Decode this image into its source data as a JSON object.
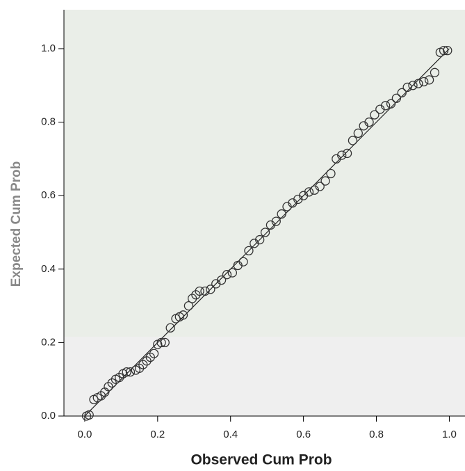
{
  "chart_data": {
    "type": "scatter",
    "x_label": "Observed Cum Prob",
    "y_label": "Expected Cum Prob",
    "x": [
      0.005,
      0.012,
      0.025,
      0.035,
      0.045,
      0.055,
      0.065,
      0.075,
      0.085,
      0.095,
      0.105,
      0.115,
      0.125,
      0.14,
      0.15,
      0.16,
      0.17,
      0.18,
      0.19,
      0.2,
      0.21,
      0.22,
      0.235,
      0.25,
      0.26,
      0.27,
      0.285,
      0.295,
      0.305,
      0.315,
      0.33,
      0.345,
      0.36,
      0.375,
      0.39,
      0.405,
      0.42,
      0.435,
      0.45,
      0.465,
      0.48,
      0.495,
      0.51,
      0.525,
      0.54,
      0.555,
      0.57,
      0.585,
      0.6,
      0.615,
      0.63,
      0.645,
      0.66,
      0.675,
      0.69,
      0.705,
      0.72,
      0.735,
      0.75,
      0.765,
      0.78,
      0.795,
      0.81,
      0.825,
      0.84,
      0.855,
      0.87,
      0.885,
      0.9,
      0.915,
      0.93,
      0.945,
      0.96,
      0.975,
      0.985,
      0.995
    ],
    "values": [
      0.0,
      0.003,
      0.045,
      0.05,
      0.055,
      0.065,
      0.08,
      0.09,
      0.1,
      0.105,
      0.115,
      0.12,
      0.12,
      0.125,
      0.13,
      0.14,
      0.15,
      0.16,
      0.17,
      0.195,
      0.2,
      0.2,
      0.24,
      0.265,
      0.27,
      0.275,
      0.3,
      0.32,
      0.33,
      0.34,
      0.34,
      0.345,
      0.36,
      0.37,
      0.385,
      0.39,
      0.41,
      0.42,
      0.45,
      0.47,
      0.48,
      0.5,
      0.52,
      0.53,
      0.55,
      0.57,
      0.58,
      0.59,
      0.6,
      0.61,
      0.615,
      0.625,
      0.64,
      0.66,
      0.7,
      0.71,
      0.715,
      0.75,
      0.77,
      0.79,
      0.8,
      0.82,
      0.835,
      0.845,
      0.85,
      0.865,
      0.88,
      0.895,
      0.9,
      0.905,
      0.91,
      0.915,
      0.935,
      0.99,
      0.995,
      0.995
    ],
    "color": "#333333",
    "reference_line": {
      "x": [
        0,
        1
      ],
      "y": [
        0,
        1
      ]
    },
    "xlim": [
      -0.057,
      1.043
    ],
    "ylim": [
      0,
      1.106
    ],
    "xticks": [
      {
        "value": 0,
        "label": "0.0"
      },
      0.2,
      0.4,
      0.6,
      0.8,
      {
        "value": 1,
        "label": "1.0"
      }
    ],
    "yticks": [
      {
        "value": 0,
        "label": "0.0"
      },
      0.2,
      0.4,
      0.6,
      0.8,
      {
        "value": 1,
        "label": "1.0"
      }
    ]
  }
}
